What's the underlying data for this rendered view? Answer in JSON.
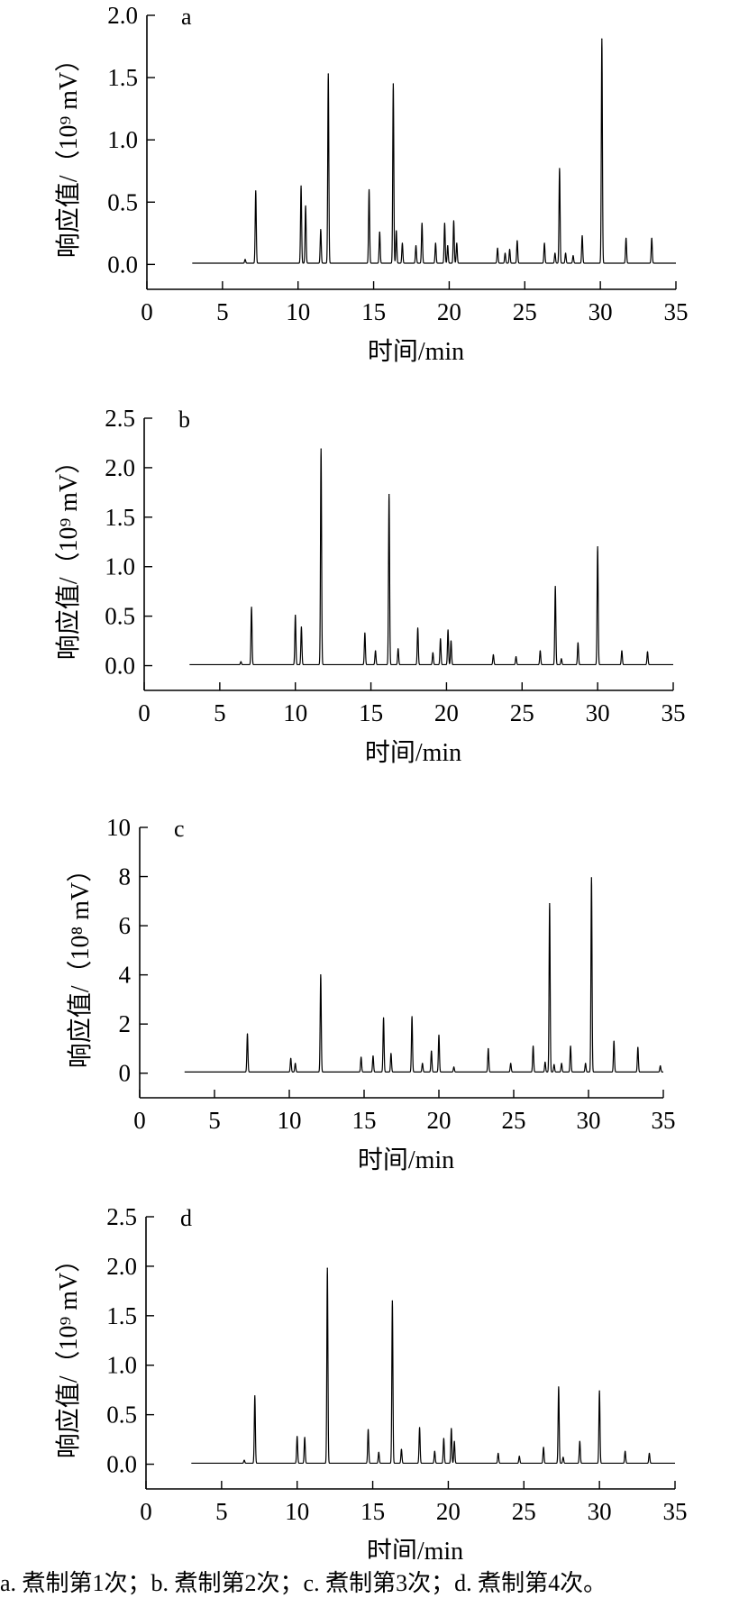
{
  "caption": "a. 煮制第1次；b. 煮制第2次；c. 煮制第3次；d. 煮制第4次。",
  "chart_data": [
    {
      "type": "line",
      "panel_label": "a",
      "xlabel": "时间/min",
      "ylabel": "响应值/（10⁹ mV）",
      "xlim": [
        0,
        35
      ],
      "ylim": [
        -0.2,
        2.0
      ],
      "xticks": [
        0,
        5,
        10,
        15,
        20,
        25,
        30,
        35
      ],
      "yticks": [
        "0.0",
        "0.5",
        "1.0",
        "1.5",
        "2.0"
      ],
      "grid": false,
      "x_range": [
        3,
        35
      ],
      "baseline": 0.01,
      "peaks": [
        [
          6.5,
          0.03
        ],
        [
          7.2,
          0.58
        ],
        [
          10.2,
          0.62
        ],
        [
          10.5,
          0.46
        ],
        [
          11.5,
          0.27
        ],
        [
          12.0,
          1.52
        ],
        [
          14.7,
          0.59
        ],
        [
          15.4,
          0.25
        ],
        [
          16.3,
          1.44
        ],
        [
          16.5,
          0.26
        ],
        [
          16.9,
          0.16
        ],
        [
          17.8,
          0.14
        ],
        [
          18.2,
          0.32
        ],
        [
          19.1,
          0.16
        ],
        [
          19.7,
          0.32
        ],
        [
          19.9,
          0.14
        ],
        [
          20.3,
          0.34
        ],
        [
          20.5,
          0.16
        ],
        [
          23.2,
          0.12
        ],
        [
          23.7,
          0.08
        ],
        [
          24.0,
          0.11
        ],
        [
          24.5,
          0.18
        ],
        [
          26.3,
          0.16
        ],
        [
          27.0,
          0.08
        ],
        [
          27.3,
          0.76
        ],
        [
          27.7,
          0.08
        ],
        [
          28.2,
          0.06
        ],
        [
          28.8,
          0.22
        ],
        [
          30.1,
          1.8
        ],
        [
          31.7,
          0.2
        ],
        [
          33.4,
          0.2
        ]
      ]
    },
    {
      "type": "line",
      "panel_label": "b",
      "xlabel": "时间/min",
      "ylabel": "响应值/（10⁹ mV）",
      "xlim": [
        0,
        35
      ],
      "ylim": [
        -0.25,
        2.5
      ],
      "xticks": [
        0,
        5,
        10,
        15,
        20,
        25,
        30,
        35
      ],
      "yticks": [
        "0.0",
        "0.5",
        "1.0",
        "1.5",
        "2.0",
        "2.5"
      ],
      "grid": false,
      "x_range": [
        3,
        35
      ],
      "baseline": 0.01,
      "peaks": [
        [
          6.4,
          0.03
        ],
        [
          7.1,
          0.58
        ],
        [
          10.0,
          0.5
        ],
        [
          10.4,
          0.38
        ],
        [
          11.7,
          2.18
        ],
        [
          14.6,
          0.32
        ],
        [
          15.3,
          0.14
        ],
        [
          16.2,
          1.72
        ],
        [
          16.8,
          0.16
        ],
        [
          18.1,
          0.37
        ],
        [
          19.1,
          0.12
        ],
        [
          19.6,
          0.26
        ],
        [
          20.1,
          0.35
        ],
        [
          20.3,
          0.24
        ],
        [
          23.1,
          0.1
        ],
        [
          24.6,
          0.08
        ],
        [
          26.2,
          0.14
        ],
        [
          27.2,
          0.79
        ],
        [
          27.6,
          0.06
        ],
        [
          28.7,
          0.22
        ],
        [
          30.0,
          1.19
        ],
        [
          31.6,
          0.14
        ],
        [
          33.3,
          0.13
        ]
      ]
    },
    {
      "type": "line",
      "panel_label": "c",
      "xlabel": "时间/min",
      "ylabel": "响应值/（10⁸ mV）",
      "xlim": [
        0,
        35
      ],
      "ylim": [
        -1,
        10
      ],
      "xticks": [
        0,
        5,
        10,
        15,
        20,
        25,
        30,
        35
      ],
      "yticks": [
        "0",
        "2",
        "4",
        "6",
        "8",
        "10"
      ],
      "grid": false,
      "x_range": [
        3,
        35
      ],
      "baseline": 0.05,
      "peaks": [
        [
          7.2,
          1.55
        ],
        [
          10.1,
          0.55
        ],
        [
          10.4,
          0.35
        ],
        [
          12.1,
          3.95
        ],
        [
          14.8,
          0.6
        ],
        [
          15.6,
          0.65
        ],
        [
          16.3,
          2.2
        ],
        [
          16.8,
          0.75
        ],
        [
          18.2,
          2.25
        ],
        [
          18.9,
          0.35
        ],
        [
          19.5,
          0.85
        ],
        [
          20.0,
          1.5
        ],
        [
          21.0,
          0.2
        ],
        [
          23.3,
          0.95
        ],
        [
          24.8,
          0.35
        ],
        [
          26.3,
          1.05
        ],
        [
          27.1,
          0.4
        ],
        [
          27.4,
          6.85
        ],
        [
          27.7,
          0.3
        ],
        [
          28.2,
          0.35
        ],
        [
          28.8,
          1.05
        ],
        [
          29.8,
          0.35
        ],
        [
          30.2,
          7.9
        ],
        [
          31.7,
          1.25
        ],
        [
          33.3,
          1.0
        ],
        [
          34.8,
          0.25
        ]
      ]
    },
    {
      "type": "line",
      "panel_label": "d",
      "xlabel": "时间/min",
      "ylabel": "响应值/（10⁹ mV）",
      "xlim": [
        0,
        35
      ],
      "ylim": [
        -0.25,
        2.5
      ],
      "xticks": [
        0,
        5,
        10,
        15,
        20,
        25,
        30,
        35
      ],
      "yticks": [
        "0.0",
        "0.5",
        "1.0",
        "1.5",
        "2.0",
        "2.5"
      ],
      "grid": false,
      "x_range": [
        3,
        35
      ],
      "baseline": 0.01,
      "peaks": [
        [
          6.5,
          0.03
        ],
        [
          7.2,
          0.68
        ],
        [
          10.0,
          0.27
        ],
        [
          10.5,
          0.26
        ],
        [
          12.0,
          1.97
        ],
        [
          14.7,
          0.34
        ],
        [
          15.4,
          0.11
        ],
        [
          16.3,
          1.64
        ],
        [
          16.9,
          0.14
        ],
        [
          18.1,
          0.36
        ],
        [
          19.1,
          0.12
        ],
        [
          19.7,
          0.25
        ],
        [
          20.2,
          0.35
        ],
        [
          20.4,
          0.22
        ],
        [
          23.3,
          0.1
        ],
        [
          24.7,
          0.07
        ],
        [
          26.3,
          0.16
        ],
        [
          27.3,
          0.77
        ],
        [
          27.6,
          0.06
        ],
        [
          28.7,
          0.22
        ],
        [
          30.0,
          0.73
        ],
        [
          31.7,
          0.12
        ],
        [
          33.3,
          0.1
        ]
      ]
    }
  ]
}
